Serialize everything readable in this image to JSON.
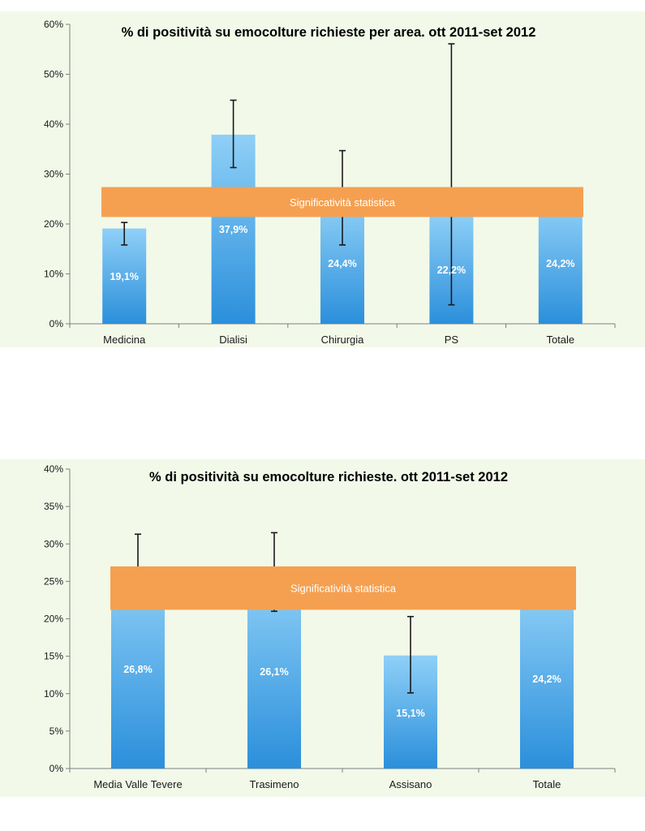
{
  "chart_data": [
    {
      "type": "bar",
      "title": "% di positività su emocolture richieste per area. ott 2011-set 2012",
      "categories": [
        "Medicina",
        "Dialisi",
        "Chirurgia",
        "PS",
        "Totale"
      ],
      "values": [
        19.1,
        37.9,
        24.4,
        22.2,
        24.2
      ],
      "value_labels": [
        "19,1%",
        "37,9%",
        "24,4%",
        "22,2%",
        "24,2%"
      ],
      "error_bars": [
        {
          "low": 15.8,
          "high": 20.3
        },
        {
          "low": 31.3,
          "high": 44.8
        },
        {
          "low": 15.8,
          "high": 34.7
        },
        {
          "low": 3.8,
          "high": 56.1
        },
        null
      ],
      "ylim": [
        0,
        60
      ],
      "yticks": [
        0,
        10,
        20,
        30,
        40,
        50,
        60
      ],
      "ytick_labels": [
        "0%",
        "10%",
        "20%",
        "30%",
        "40%",
        "50%",
        "60%"
      ],
      "band": {
        "label": "Significatività statistica",
        "low": 21.4,
        "high": 27.4
      },
      "xlabel": "",
      "ylabel": ""
    },
    {
      "type": "bar",
      "title": "% di positività su emocolture richieste. ott 2011-set 2012",
      "categories": [
        "Media Valle Tevere",
        "Trasimeno",
        "Assisano",
        "Totale"
      ],
      "values": [
        26.8,
        26.1,
        15.1,
        24.2
      ],
      "value_labels": [
        "26,8%",
        "26,1%",
        "15,1%",
        "24,2%"
      ],
      "error_bars": [
        {
          "low": 22.5,
          "high": 31.3
        },
        {
          "low": 21.0,
          "high": 31.5
        },
        {
          "low": 10.1,
          "high": 20.3
        },
        null
      ],
      "ylim": [
        0,
        40
      ],
      "yticks": [
        0,
        5,
        10,
        15,
        20,
        25,
        30,
        35,
        40
      ],
      "ytick_labels": [
        "0%",
        "5%",
        "10%",
        "15%",
        "20%",
        "25%",
        "30%",
        "35%",
        "40%"
      ],
      "band": {
        "label": "Significatività statistica",
        "low": 21.2,
        "high": 27.0
      },
      "xlabel": "",
      "ylabel": ""
    }
  ],
  "colors": {
    "panel_background": "#f2f9e9",
    "bar_light": "#8fd0f7",
    "bar_dark": "#2b8fdb",
    "band": "#f5a050",
    "error_bar": "#1a1a1a",
    "axis": "#7f7f7f"
  }
}
